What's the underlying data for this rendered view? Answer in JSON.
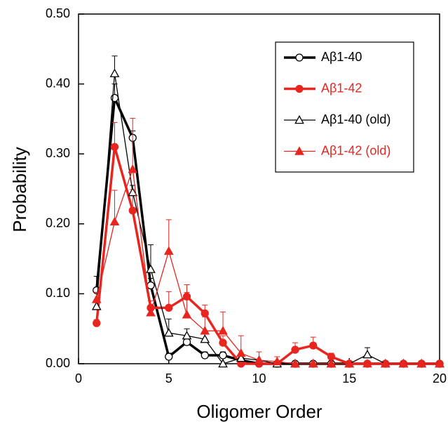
{
  "chart_data": {
    "type": "line",
    "xlabel": "Oligomer Order",
    "ylabel": "Probability",
    "x": [
      1,
      2,
      3,
      4,
      5,
      6,
      7,
      8,
      9,
      10,
      11,
      12,
      13,
      14,
      15,
      16,
      17,
      18,
      19,
      20
    ],
    "xlim": [
      0,
      20
    ],
    "xticks": [
      0,
      5,
      10,
      15,
      20
    ],
    "ylim": [
      0,
      0.5
    ],
    "yticks": [
      {
        "value": 0,
        "label": "0.00"
      },
      {
        "value": 0.1,
        "label": "0.10"
      },
      {
        "value": 0.2,
        "label": "0.20"
      },
      {
        "value": 0.3,
        "label": "0.30"
      },
      {
        "value": 0.4,
        "label": "0.40"
      },
      {
        "value": 0.5,
        "label": "0.50"
      }
    ],
    "series": [
      {
        "name": "Aβ1-40",
        "color": "#000000",
        "marker": "circle",
        "filled": false,
        "width": 3.5,
        "values": [
          0.105,
          0.38,
          0.323,
          0.112,
          0.01,
          0.031,
          0.012,
          0.012,
          0.005,
          0,
          0,
          0,
          0,
          0,
          0,
          0,
          0,
          0,
          0,
          0
        ],
        "errors": [
          0.02,
          0.02,
          0.01,
          0.01,
          0.005,
          0.008,
          0.005,
          0.005,
          0.003,
          null,
          null,
          null,
          null,
          null,
          null,
          null,
          null,
          null,
          null,
          null
        ]
      },
      {
        "name": "Aβ1-42",
        "color": "#e8251f",
        "marker": "circle",
        "filled": true,
        "width": 3.5,
        "values": [
          0.058,
          0.31,
          0.219,
          0.08,
          0.08,
          0.096,
          0.072,
          0.03,
          0,
          0,
          0,
          0.02,
          0.026,
          0.01,
          0,
          0,
          0,
          0,
          0,
          0
        ],
        "errors": [
          0.005,
          0.035,
          0.03,
          0.01,
          0.023,
          0.017,
          0.012,
          0.01,
          null,
          null,
          null,
          0.01,
          0.012,
          0.005,
          null,
          null,
          null,
          null,
          null,
          null
        ]
      },
      {
        "name": "Aβ1-40 (old)",
        "color": "#000000",
        "marker": "triangle",
        "filled": false,
        "width": 1.3,
        "values": [
          0.082,
          0.415,
          0.245,
          0.135,
          0.044,
          0.04,
          0.035,
          0,
          0.008,
          0.005,
          0,
          0,
          0,
          0,
          0,
          0.013,
          0,
          0,
          0,
          0
        ],
        "errors": [
          0.02,
          0.025,
          0.01,
          0.035,
          0.02,
          0.01,
          0.01,
          null,
          0.005,
          null,
          null,
          null,
          null,
          null,
          null,
          0.01,
          null,
          null,
          null,
          null
        ]
      },
      {
        "name": "Aβ1-42 (old)",
        "color": "#e8251f",
        "marker": "triangle",
        "filled": true,
        "width": 1.3,
        "values": [
          0.092,
          0.203,
          0.278,
          0.073,
          0.161,
          0.07,
          0.047,
          0.047,
          0.015,
          0.005,
          0.003,
          0,
          0,
          0,
          0,
          0,
          0,
          0,
          0,
          0
        ],
        "errors": [
          0.01,
          0.045,
          0.073,
          0.01,
          0.045,
          0.032,
          0.02,
          0.027,
          0.025,
          0.012,
          0.007,
          null,
          null,
          null,
          null,
          null,
          null,
          null,
          null,
          null
        ]
      }
    ]
  }
}
